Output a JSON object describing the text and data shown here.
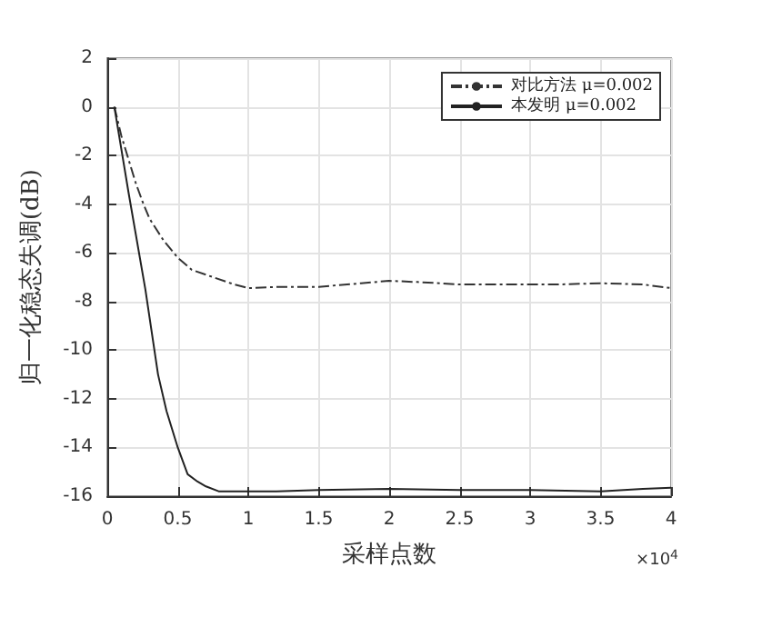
{
  "chart_data": {
    "type": "line",
    "xlabel": "采样点数",
    "ylabel": "归一化稳态失调(dB)",
    "xlim": [
      0,
      4
    ],
    "xticks": [
      0,
      0.5,
      1,
      1.5,
      2,
      2.5,
      3,
      3.5,
      4
    ],
    "ylim": [
      -16,
      2
    ],
    "yticks": [
      -16,
      -14,
      -12,
      -10,
      -8,
      -6,
      -4,
      -2,
      0,
      2
    ],
    "annotations": [
      "×10$^{4}$"
    ],
    "grid": true,
    "legend": "top right",
    "marker": "none",
    "series": [
      {
        "name": "对比方法 μ=0.002",
        "color": "#333333",
        "line_style": "dashed",
        "x": [
          0.05,
          0.1,
          0.2,
          0.25,
          0.3,
          0.4,
          0.5,
          0.6,
          0.75,
          0.9,
          1.0,
          1.2,
          1.5,
          1.8,
          2.0,
          2.2,
          2.5,
          2.8,
          3.0,
          3.2,
          3.5,
          3.8,
          4.0
        ],
        "values": [
          0,
          -1.2,
          -3.1,
          -3.9,
          -4.6,
          -5.5,
          -6.2,
          -6.7,
          -7.0,
          -7.3,
          -7.45,
          -7.4,
          -7.4,
          -7.25,
          -7.15,
          -7.2,
          -7.3,
          -7.3,
          -7.3,
          -7.3,
          -7.25,
          -7.3,
          -7.45
        ]
      },
      {
        "name": "本发明 μ=0.002",
        "color": "#222222",
        "line_style": "solid",
        "x": [
          0.05,
          0.15,
          0.27,
          0.36,
          0.42,
          0.5,
          0.57,
          0.64,
          0.7,
          0.79,
          0.9,
          1.2,
          1.5,
          2.0,
          2.5,
          3.0,
          3.5,
          3.8,
          4.0
        ],
        "values": [
          0,
          -3.5,
          -7.5,
          -11,
          -12.5,
          -14.0,
          -15.1,
          -15.4,
          -15.6,
          -15.8,
          -15.8,
          -15.8,
          -15.75,
          -15.7,
          -15.75,
          -15.75,
          -15.8,
          -15.7,
          -15.65
        ]
      }
    ]
  }
}
